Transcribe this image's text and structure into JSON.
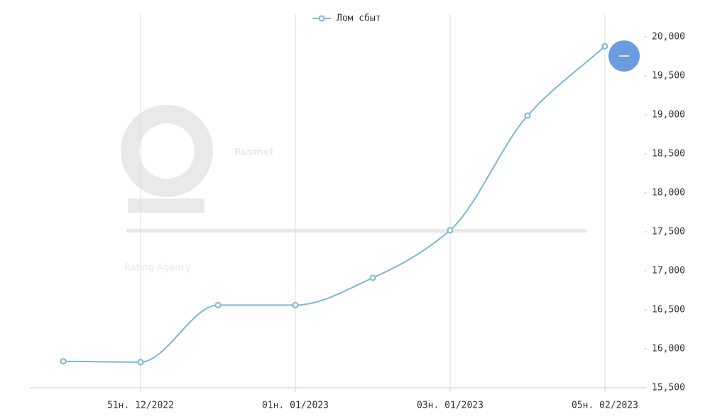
{
  "chart_data": {
    "type": "line",
    "watermark": [
      "Rusmet",
      "Rating Agency"
    ],
    "categories": [
      null,
      "51н. 12/2022",
      null,
      "01н. 01/2023",
      null,
      "03н. 01/2023",
      null,
      "05н. 02/2023"
    ],
    "series": [
      {
        "name": "Лом сбыт",
        "color": "#7ab8d6",
        "values": [
          15840,
          15830,
          16560,
          16560,
          16910,
          17520,
          18990,
          19880
        ]
      }
    ],
    "ylim": [
      15500,
      20000
    ],
    "yticks": [
      {
        "value": 15500,
        "label": "15,500"
      },
      {
        "value": 16000,
        "label": "16,000"
      },
      {
        "value": 16500,
        "label": "16,500"
      },
      {
        "value": 17000,
        "label": "17,000"
      },
      {
        "value": 17500,
        "label": "17,500"
      },
      {
        "value": 18000,
        "label": "18,000"
      },
      {
        "value": 18500,
        "label": "18,500"
      },
      {
        "value": 19000,
        "label": "19,000"
      },
      {
        "value": 19500,
        "label": "19,500"
      },
      {
        "value": 20000,
        "label": "20,000"
      }
    ],
    "grid": true,
    "legend": "top"
  }
}
